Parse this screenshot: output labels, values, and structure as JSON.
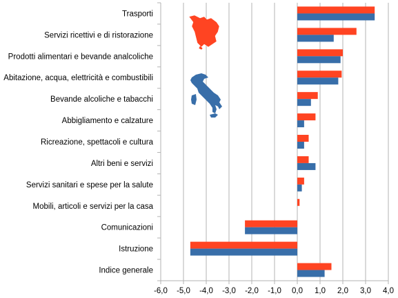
{
  "chart_data": {
    "type": "bar",
    "orientation": "horizontal",
    "categories": [
      "Trasporti",
      "Servizi ricettivi e di ristorazione",
      "Prodotti alimentari e bevande analcoliche",
      "Abitazione, acqua, elettricità e combustibili",
      "Bevande alcoliche e tabacchi",
      "Abbigliamento e calzature",
      "Ricreazione, spettacoli e cultura",
      "Altri beni e servizi",
      "Servizi sanitari e spese per la salute",
      "Mobili, articoli e servizi per la casa",
      "Comunicazioni",
      "Istruzione",
      "Indice generale"
    ],
    "series": [
      {
        "color": "#ff4422",
        "icon": "tuscany-region-map-icon",
        "values": [
          3.4,
          2.6,
          2.0,
          1.95,
          0.9,
          0.8,
          0.5,
          0.5,
          0.3,
          0.1,
          -2.3,
          -4.7,
          1.5
        ]
      },
      {
        "color": "#386ea9",
        "icon": "italy-map-icon",
        "values": [
          3.4,
          1.6,
          1.9,
          1.8,
          0.6,
          0.3,
          0.3,
          0.8,
          0.2,
          0.0,
          -2.3,
          -4.7,
          1.2
        ]
      }
    ],
    "xlim": [
      -6.0,
      4.0
    ],
    "xticks": [
      "-6,0",
      "-5,0",
      "-4,0",
      "-3,0",
      "-2,0",
      "-1,0",
      "0,0",
      "1,0",
      "2,0",
      "3,0",
      "4,0"
    ],
    "grid": true,
    "legend": "icon-maps-top-left"
  }
}
